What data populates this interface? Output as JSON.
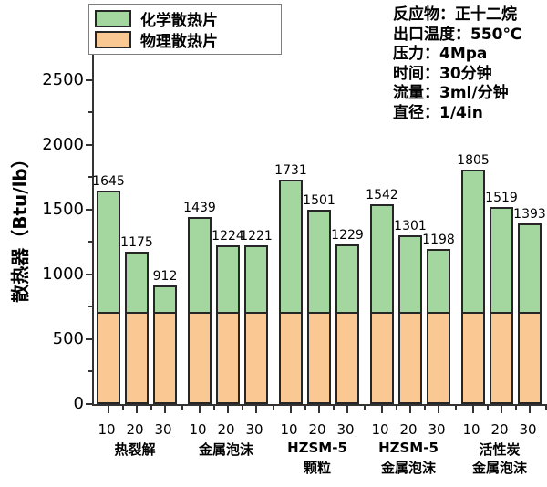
{
  "chart_data": {
    "type": "bar",
    "stacked": true,
    "ylabel": "散热器（Btu/lb）",
    "ylim": [
      0,
      2750
    ],
    "yticks": [
      0,
      500,
      1000,
      1500,
      2000,
      2500
    ],
    "yminorticks": [
      250,
      750,
      1250,
      1750,
      2250,
      2750
    ],
    "grid": false,
    "legend_position": "top-left",
    "legend": [
      {
        "label": "化学散热片",
        "series": "chemical",
        "color": "#a4d6a0"
      },
      {
        "label": "物理散热片",
        "series": "physical",
        "color": "#f9c893"
      }
    ],
    "sub_categories": [
      "10",
      "20",
      "30"
    ],
    "groups": [
      {
        "label_lines": [
          "热裂解"
        ],
        "totals": [
          1645,
          1175,
          912
        ]
      },
      {
        "label_lines": [
          "金属泡沫"
        ],
        "totals": [
          1439,
          1224,
          1221
        ]
      },
      {
        "label_lines": [
          "HZSM-5",
          "颗粒"
        ],
        "totals": [
          1731,
          1501,
          1229
        ]
      },
      {
        "label_lines": [
          "HZSM-5",
          "金属泡沫"
        ],
        "totals": [
          1542,
          1301,
          1198
        ]
      },
      {
        "label_lines": [
          "活性炭",
          "金属泡沫"
        ],
        "totals": [
          1805,
          1519,
          1393
        ]
      }
    ],
    "physical_base_value": 710,
    "annotation_lines": [
      "反应物：正十二烷",
      "出口温度：550℃",
      "压力：4Mpa",
      "时间：30分钟",
      "流量：3ml/分钟",
      "直径：1/4in"
    ],
    "colors": {
      "chemical": "#a4d6a0",
      "physical": "#f9c893",
      "bar_border": "#262626",
      "axis": "#333333",
      "text": "#000000"
    }
  }
}
